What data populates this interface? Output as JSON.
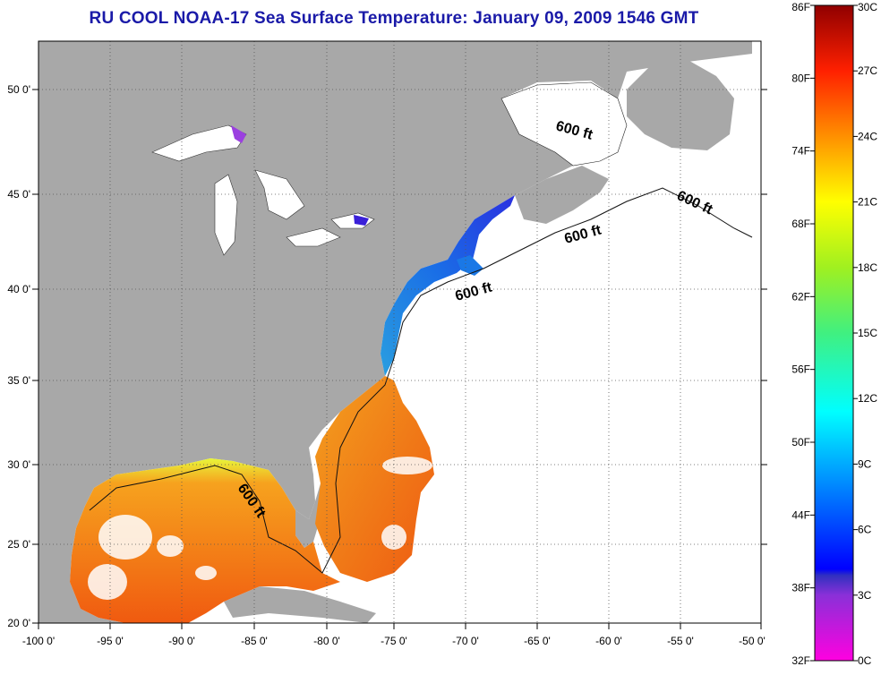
{
  "title": "RU COOL  NOAA-17  Sea Surface Temperature:  January 09, 2009 1546 GMT",
  "map": {
    "lon_range": [
      -100,
      -50
    ],
    "lat_range": [
      20,
      52
    ],
    "lon_ticks": [
      "-100 0'",
      "-95 0'",
      "-90 0'",
      "-85 0'",
      "-80 0'",
      "-75 0'",
      "-70 0'",
      "-65 0'",
      "-60 0'",
      "-55 0'",
      "-50 0'"
    ],
    "lat_ticks": [
      "50 0'",
      "45 0'",
      "40 0'",
      "35 0'",
      "30 0'",
      "25 0'",
      "20 0'"
    ],
    "isobath_labels": [
      "600 ft",
      "600 ft",
      "600 ft",
      "600 ft",
      "600 ft"
    ],
    "colors": {
      "land": "#a8a8a8",
      "no_data": "#ffffff",
      "grid": "#555555"
    }
  },
  "colorbar": {
    "fahrenheit_labels": [
      "86F",
      "80F",
      "74F",
      "68F",
      "62F",
      "56F",
      "50F",
      "44F",
      "38F",
      "32F"
    ],
    "celsius_labels": [
      "30C",
      "27C",
      "24C",
      "21C",
      "18C",
      "15C",
      "12C",
      "9C",
      "6C",
      "3C",
      "0C"
    ],
    "celsius_range": [
      0,
      30
    ]
  }
}
